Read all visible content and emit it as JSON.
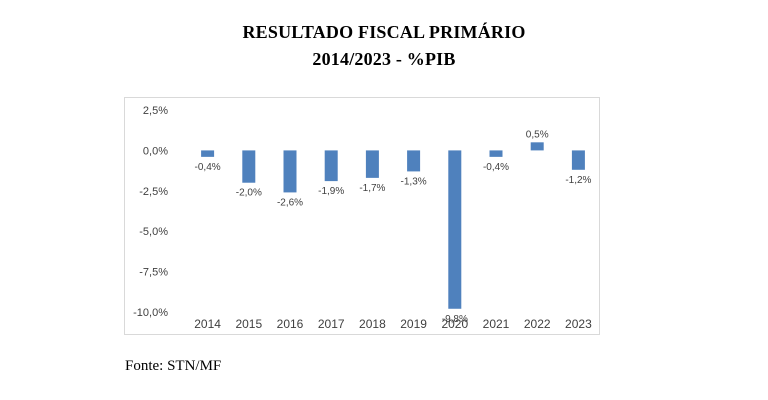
{
  "chart_data": {
    "type": "bar",
    "title": "RESULTADO FISCAL PRIMÁRIO",
    "subtitle": "2014/2023  -  %PIB",
    "categories": [
      "2014",
      "2015",
      "2016",
      "2017",
      "2018",
      "2019",
      "2020",
      "2021",
      "2022",
      "2023"
    ],
    "values": [
      -0.4,
      -2.0,
      -2.6,
      -1.9,
      -1.7,
      -1.3,
      -9.8,
      -0.4,
      0.5,
      -1.2
    ],
    "data_labels": [
      "-0,4%",
      "-2,0%",
      "-2,6%",
      "-1,9%",
      "-1,7%",
      "-1,3%",
      "-9,8%",
      "-0,4%",
      "0,5%",
      "-1,2%"
    ],
    "ylim": [
      -10,
      2.5
    ],
    "y_ticks": [
      2.5,
      0,
      -2.5,
      -5,
      -7.5,
      -10
    ],
    "y_tick_labels": [
      "2,5%",
      "0,0%",
      "-2,5%",
      "-5,0%",
      "-7,5%",
      "-10,0%"
    ],
    "xlabel": "",
    "ylabel": "",
    "grid": false,
    "bar_color": "#4f81bd"
  },
  "source": "Fonte: STN/MF"
}
